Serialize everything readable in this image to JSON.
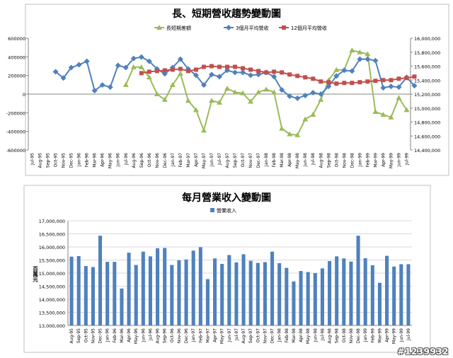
{
  "months": [
    "Jul-95",
    "Aug-95",
    "Sep-95",
    "Oct-95",
    "Nov-95",
    "Dec-95",
    "Jan-96",
    "Feb-96",
    "Mar-96",
    "Apr-96",
    "May-96",
    "Jun-96",
    "Jul-96",
    "Aug-96",
    "Sep-96",
    "Oct-96",
    "Nov-96",
    "Dec-96",
    "Jan-97",
    "Feb-97",
    "Mar-97",
    "Apr-97",
    "May-97",
    "Jun-97",
    "Jul-97",
    "Aug-97",
    "Sep-97",
    "Oct-97",
    "Nov-97",
    "Dec-97",
    "Jan-98",
    "Feb-98",
    "Mar-98",
    "Apr-98",
    "May-98",
    "Jun-98",
    "Jul-98",
    "Aug-98",
    "Sep-98",
    "Oct-98",
    "Nov-98",
    "Dec-98",
    "Jan-99",
    "Feb-99",
    "Mar-99",
    "Apr-99",
    "May-99",
    "Jun-99",
    "Jul-99"
  ],
  "watermark": "#1239932",
  "colors": {
    "green": "#9bbb59",
    "blue": "#4f81bd",
    "red": "#c0504d",
    "bar": "#4f81bd",
    "grid": "#d9d9d9",
    "axis": "#868686"
  },
  "chart_data": [
    {
      "type": "line",
      "title": "長、短期營收趨勢變動圖",
      "legend_position": "top",
      "x_start_index": 0,
      "ylim_left": [
        -600000,
        600000
      ],
      "yticks_left": [
        "600000",
        "400000",
        "200000",
        "0",
        "-200000",
        "-400000",
        "-600000"
      ],
      "ylim_right": [
        14400000,
        16000000
      ],
      "yticks_right": [
        "16,000,000",
        "15,800,000",
        "15,600,000",
        "15,400,000",
        "15,200,000",
        "15,000,000",
        "14,800,000",
        "14,600,000",
        "14,400,000"
      ],
      "grid": false,
      "series": [
        {
          "name": "長短期差額",
          "axis": "left",
          "color": "#9bbb59",
          "marker": "triangle",
          "start": 12,
          "values": [
            100000,
            290000,
            290000,
            180000,
            0,
            -60000,
            100000,
            220000,
            -70000,
            -170000,
            -390000,
            -70000,
            -90000,
            60000,
            20000,
            10000,
            -80000,
            20000,
            50000,
            20000,
            -370000,
            -430000,
            -440000,
            -270000,
            -220000,
            -60000,
            150000,
            260000,
            260000,
            470000,
            450000,
            430000,
            -190000,
            -220000,
            -250000,
            -40000,
            -170000
          ]
        },
        {
          "name": "3個月平均營收",
          "axis": "right",
          "color": "#4f81bd",
          "marker": "diamond",
          "start": 3,
          "values": [
            15520000,
            15430000,
            15580000,
            15620000,
            15670000,
            15250000,
            15330000,
            15300000,
            15610000,
            15580000,
            15710000,
            15730000,
            15670000,
            15560000,
            15490000,
            15580000,
            15700000,
            15560000,
            15470000,
            15330000,
            15480000,
            15450000,
            15540000,
            15510000,
            15510000,
            15470000,
            15480000,
            15510000,
            15450000,
            15260000,
            15170000,
            15140000,
            15180000,
            15220000,
            15200000,
            15310000,
            15460000,
            15540000,
            15530000,
            15700000,
            15700000,
            15680000,
            15290000,
            15310000,
            15300000,
            15440000,
            15320000
          ]
        },
        {
          "name": "12個月平均營收",
          "axis": "right",
          "color": "#c0504d",
          "marker": "square",
          "start": 14,
          "values": [
            15500000,
            15520000,
            15530000,
            15540000,
            15550000,
            15560000,
            15530000,
            15550000,
            15590000,
            15600000,
            15590000,
            15590000,
            15590000,
            15570000,
            15550000,
            15530000,
            15510000,
            15520000,
            15510000,
            15480000,
            15460000,
            15440000,
            15420000,
            15380000,
            15370000,
            15350000,
            15360000,
            15360000,
            15370000,
            15380000,
            15390000,
            15400000,
            15400000,
            15420000,
            15430000,
            15450000
          ]
        }
      ]
    },
    {
      "type": "bar",
      "title": "每月營業收入變動圖",
      "ylabel": "百萬元",
      "legend_position": "top",
      "ylim": [
        13000000,
        17000000
      ],
      "yticks": [
        "17,000,000",
        "16,500,000",
        "16,000,000",
        "15,500,000",
        "15,000,000",
        "14,500,000",
        "14,000,000",
        "13,500,000",
        "13,000,000"
      ],
      "grid": true,
      "series": [
        {
          "name": "營業收入",
          "start": 1,
          "values": [
            15630000,
            15650000,
            15270000,
            15230000,
            16430000,
            15430000,
            15430000,
            14410000,
            15780000,
            15310000,
            15820000,
            15640000,
            15950000,
            15960000,
            15310000,
            15490000,
            15520000,
            15860000,
            15990000,
            14770000,
            15560000,
            15350000,
            15690000,
            15410000,
            15720000,
            15470000,
            15390000,
            15420000,
            15820000,
            15380000,
            15200000,
            14680000,
            15080000,
            15040000,
            15000000,
            15180000,
            15460000,
            15640000,
            15560000,
            15440000,
            16430000,
            15570000,
            15300000,
            14630000,
            15660000,
            15250000,
            15340000,
            15340000
          ]
        }
      ]
    }
  ]
}
